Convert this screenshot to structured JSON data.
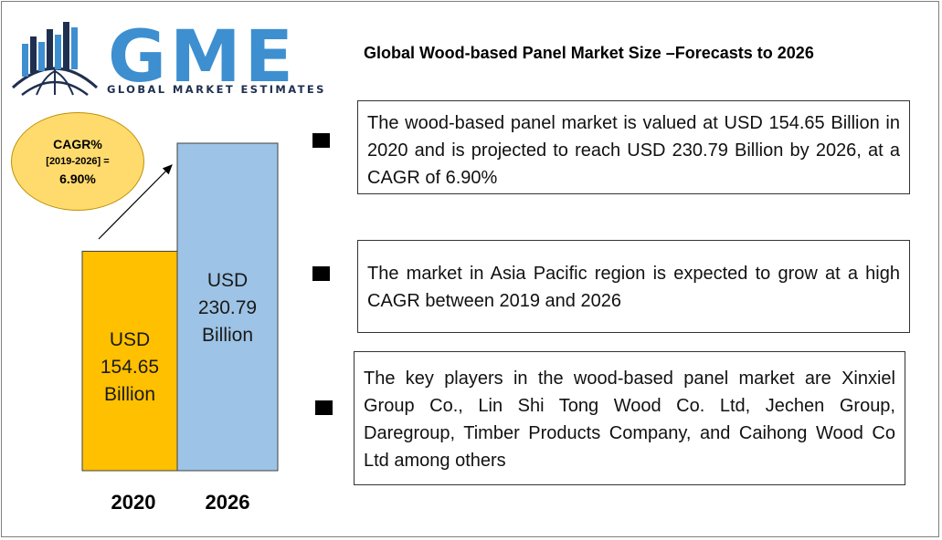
{
  "logo": {
    "wordmark": "GME",
    "tagline": "GLOBAL MARKET ESTIMATES"
  },
  "header": {
    "title": "Global Wood-based Panel Market Size –Forecasts to 2026"
  },
  "cagr": {
    "line1": "CAGR%",
    "line2": "[2019-2026] =",
    "line3": "6.90%"
  },
  "chart_data": {
    "type": "bar",
    "categories": [
      "2020",
      "2026"
    ],
    "values": [
      154.65,
      230.79
    ],
    "value_labels": [
      [
        "USD",
        "154.65",
        "Billion"
      ],
      [
        "USD",
        "230.79",
        "Billion"
      ]
    ],
    "colors": [
      "#ffc000",
      "#9dc3e6"
    ],
    "ylim": [
      0,
      230.79
    ],
    "grid": false,
    "title": "",
    "xlabel": "",
    "ylabel": ""
  },
  "points": [
    "The wood-based panel market is valued at USD 154.65 Billion in 2020 and is projected to reach USD 230.79 Billion by 2026, at a CAGR of 6.90%",
    "The market in Asia Pacific region is expected to grow at a high CAGR between 2019 and 2026",
    "The key players in the wood-based panel market are Xinxiel Group Co., Lin Shi Tong Wood Co. Ltd, Jechen Group, Daregroup, Timber Products Company, and Caihong Wood Co Ltd among others"
  ],
  "colors": {
    "logo_blue": "#3d8fd0",
    "logo_dark": "#1f2f4f",
    "oval_fill": "#ffdb6e",
    "bar_2020": "#ffc000",
    "bar_2026": "#9dc3e6"
  },
  "icons": {
    "logo_mark": "globe-with-bars-icon",
    "bullet": "square-bullet-icon"
  }
}
